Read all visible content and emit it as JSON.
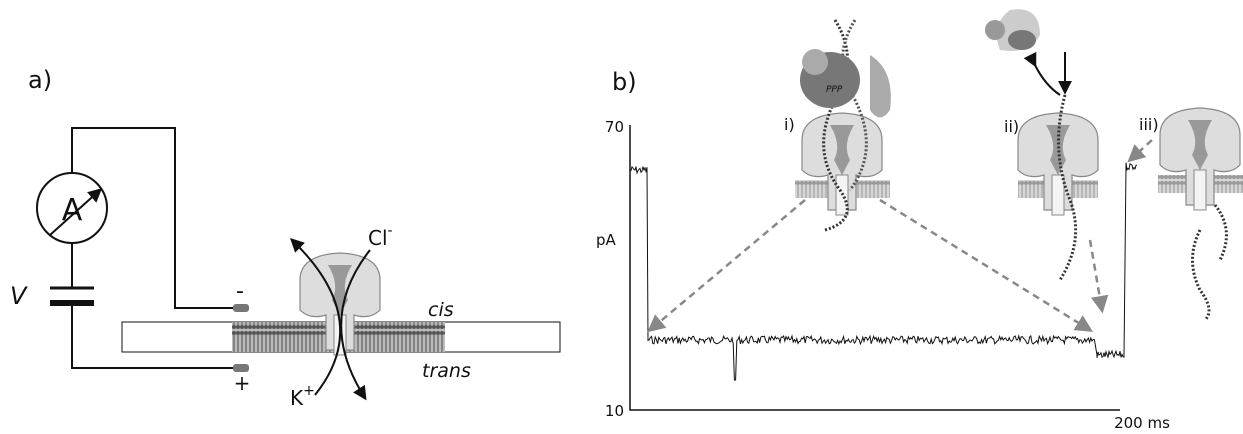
{
  "panel_a": {
    "label": "a)",
    "meter": "A",
    "voltage": "V",
    "minus": "-",
    "plus": "+",
    "chloride": "Cl",
    "chloride_charge": "-",
    "potassium": "K",
    "potassium_charge": "+",
    "cis": "cis",
    "trans": "trans"
  },
  "panel_b": {
    "label": "b)",
    "y_top": "70",
    "y_bottom": "10",
    "y_unit": "pA",
    "x_end": "200 ms",
    "phosphates": "PPP",
    "states": [
      "i)",
      "ii)",
      "iii)"
    ]
  }
}
